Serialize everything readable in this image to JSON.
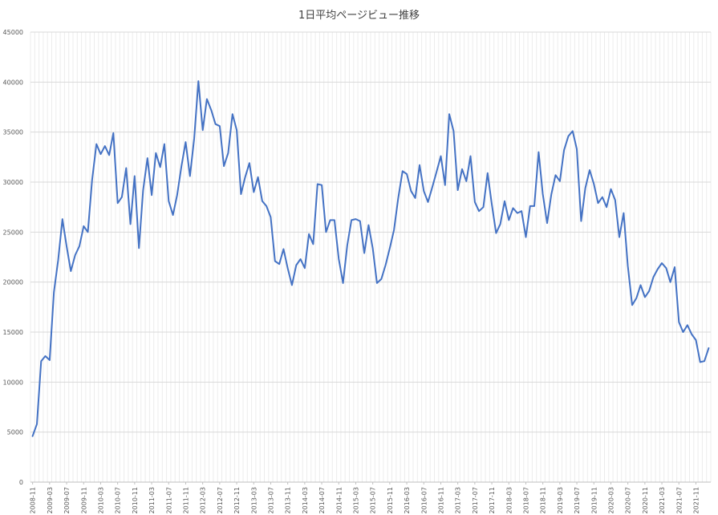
{
  "chart_data": {
    "type": "line",
    "title": "1日平均ページビュー推移",
    "ylim": [
      0,
      45000
    ],
    "yticks": [
      0,
      5000,
      10000,
      15000,
      20000,
      25000,
      30000,
      35000,
      40000,
      45000
    ],
    "x_start": "2008-11",
    "x_tick_labels": [
      "2008-11",
      "2009-03",
      "2009-07",
      "2009-11",
      "2010-03",
      "2010-07",
      "2010-11",
      "2011-03",
      "2011-07",
      "2011-11",
      "2012-03",
      "2012-07",
      "2012-11",
      "2013-03",
      "2013-07",
      "2013-11",
      "2014-03",
      "2014-07",
      "2014-11",
      "2015-03",
      "2015-07",
      "2015-11",
      "2016-03",
      "2016-07",
      "2016-11",
      "2017-03",
      "2017-07",
      "2017-11",
      "2018-03",
      "2018-07",
      "2018-11",
      "2019-03",
      "2019-07",
      "2019-11",
      "2020-03",
      "2020-07",
      "2020-11",
      "2021-03",
      "2021-07",
      "2021-11"
    ],
    "grid": true,
    "series": [
      {
        "color": "#4472C4",
        "values": [
          4600,
          5800,
          12100,
          12600,
          12200,
          19000,
          22200,
          26300,
          23600,
          21100,
          22700,
          23600,
          25600,
          25000,
          30200,
          33800,
          32800,
          33600,
          32700,
          34900,
          27900,
          28500,
          31400,
          25800,
          30600,
          23400,
          29200,
          32400,
          28700,
          32900,
          31500,
          33800,
          28100,
          26700,
          28700,
          31600,
          34000,
          30600,
          34400,
          40100,
          35200,
          38300,
          37200,
          35800,
          35600,
          31600,
          32900,
          36800,
          35200,
          28800,
          30500,
          31900,
          29000,
          30500,
          28100,
          27600,
          26500,
          22100,
          21800,
          23300,
          21400,
          19700,
          21700,
          22300,
          21400,
          24800,
          23800,
          29800,
          29700,
          25000,
          26200,
          26200,
          22300,
          19900,
          23700,
          26200,
          26300,
          26100,
          22900,
          25700,
          23400,
          19900,
          20300,
          21700,
          23400,
          25200,
          28400,
          31100,
          30800,
          29100,
          28400,
          31700,
          29100,
          28000,
          29500,
          31000,
          32600,
          29700,
          36800,
          35100,
          29200,
          31300,
          30100,
          32600,
          28000,
          27100,
          27500,
          30900,
          27800,
          24900,
          25800,
          28100,
          26200,
          27400,
          26900,
          27100,
          24500,
          27600,
          27600,
          33000,
          28800,
          25900,
          28800,
          30700,
          30100,
          33200,
          34600,
          35100,
          33300,
          26100,
          29400,
          31200,
          29800,
          27900,
          28500,
          27500,
          29300,
          28200,
          24500,
          26900,
          21600,
          17700,
          18400,
          19700,
          18500,
          19100,
          20500,
          21300,
          21900,
          21400,
          20000,
          21500,
          16000,
          15000,
          15700,
          14800,
          14200,
          12000,
          12100,
          13400
        ]
      }
    ]
  }
}
